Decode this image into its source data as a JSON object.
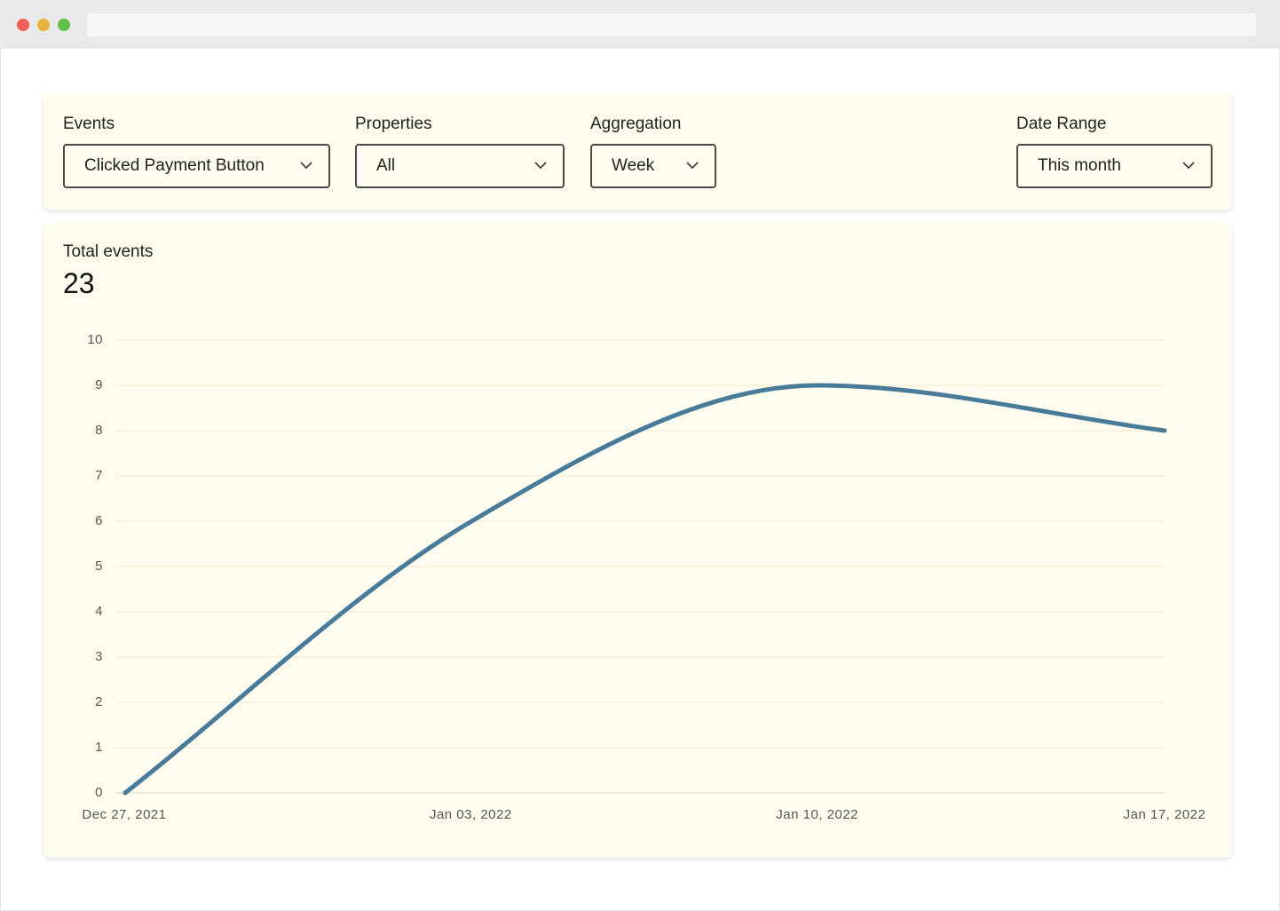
{
  "filters": [
    {
      "label": "Events",
      "value": "Clicked Payment Button"
    },
    {
      "label": "Properties",
      "value": "All"
    },
    {
      "label": "Aggregation",
      "value": "Week"
    },
    {
      "label": "Date Range",
      "value": "This month"
    }
  ],
  "chart_data": {
    "type": "line",
    "title": "Total events",
    "total": 23,
    "categories": [
      "Dec 27, 2021",
      "Jan 03, 2022",
      "Jan 10, 2022",
      "Jan 17, 2022"
    ],
    "values": [
      0,
      6,
      9,
      8
    ],
    "color": "#487a9a",
    "ylim": [
      0,
      10
    ],
    "yticks": [
      0,
      1,
      2,
      3,
      4,
      5,
      6,
      7,
      8,
      9,
      10
    ],
    "grid": true
  }
}
